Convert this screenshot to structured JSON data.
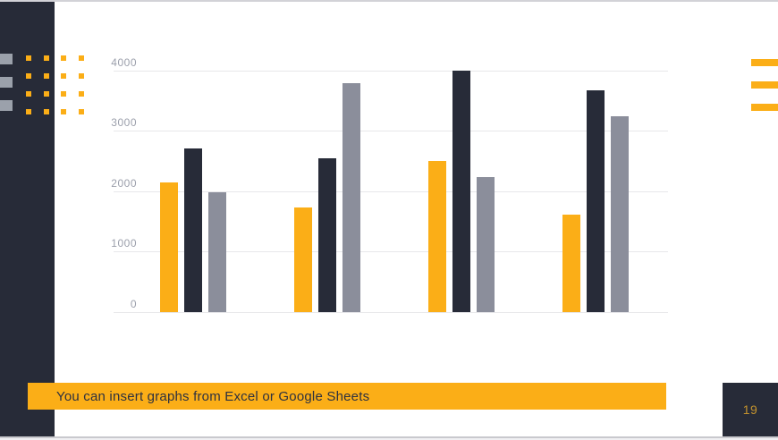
{
  "slide": {
    "caption": "You can insert graphs from Excel or Google Sheets",
    "page_number": "19"
  },
  "colors": {
    "accent_orange": "#FBAE17",
    "dark_navy": "#272B38",
    "bar_gray": "#8B8E9B",
    "axis_label_gray": "#9B9FAB",
    "gridline_gray": "#E7E7EA",
    "page_number_gold": "#C2922E"
  },
  "chart_data": {
    "type": "bar",
    "title": "",
    "categories": [
      "",
      "",
      "",
      ""
    ],
    "series": [
      {
        "name": "orange",
        "color": "#FBAE17",
        "values": [
          2150,
          1730,
          2500,
          1610
        ]
      },
      {
        "name": "dark-navy",
        "color": "#272B38",
        "values": [
          2700,
          2550,
          4000,
          3670
        ]
      },
      {
        "name": "gray",
        "color": "#8B8E9B",
        "values": [
          1975,
          3790,
          2240,
          3240
        ]
      }
    ],
    "y_axis": {
      "ticks": [
        0,
        1000,
        2000,
        3000,
        4000
      ],
      "range": [
        0,
        4000
      ]
    },
    "grid": true,
    "legend": "none",
    "x_axis_labels_visible": false
  }
}
